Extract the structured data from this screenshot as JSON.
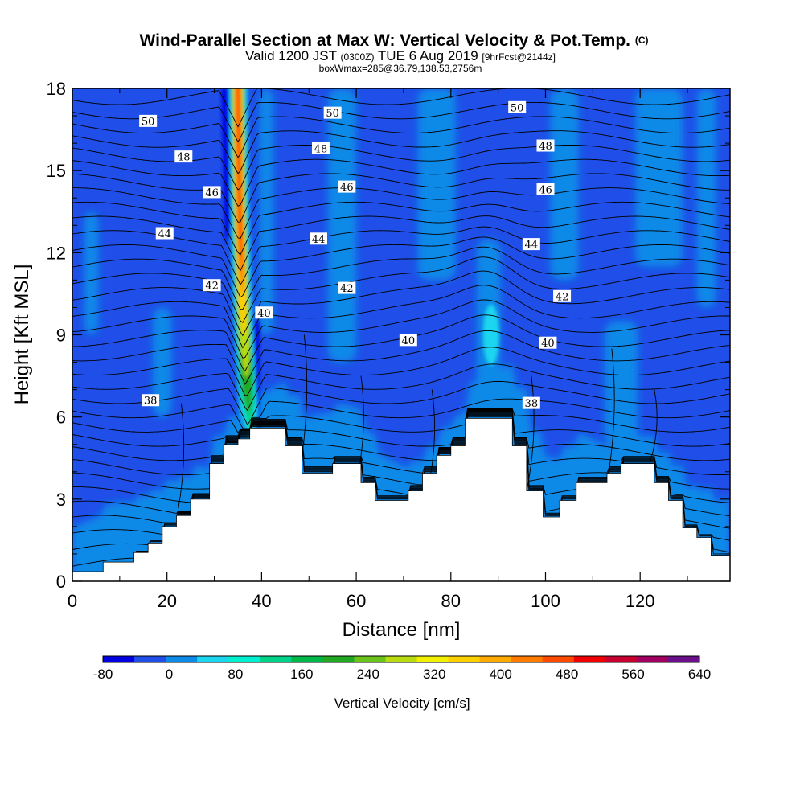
{
  "chart_data": {
    "type": "heatmap",
    "title": "Wind-Parallel Section at Max W: Vertical Velocity & Pot.Temp.",
    "title_mark": "(C)",
    "subtitle_main": "Valid 1200 JST",
    "subtitle_utc": "(0300Z)",
    "subtitle_date": "TUE 6 Aug 2019",
    "subtitle_fcst": "[9hrFcst@2144z]",
    "subtitle2": "boxWmax=285@36.79,138.53,2756m",
    "xlabel": "Distance [nm]",
    "ylabel": "Height [Kft MSL]",
    "xlim": [
      0,
      139
    ],
    "ylim": [
      0,
      18
    ],
    "x_ticks": [
      0,
      20,
      40,
      60,
      80,
      100,
      120
    ],
    "y_ticks": [
      0,
      3,
      6,
      9,
      12,
      15,
      18
    ],
    "colorbar": {
      "label": "Vertical Velocity [cm/s]",
      "ticks": [
        -80,
        0,
        80,
        160,
        240,
        320,
        400,
        480,
        560,
        640
      ],
      "levels": [
        -80,
        -40,
        0,
        40,
        80,
        120,
        160,
        200,
        240,
        280,
        320,
        360,
        400,
        440,
        480,
        520,
        560,
        600,
        640
      ],
      "colors": [
        "#0000e0",
        "#1f4ee8",
        "#0e8ae8",
        "#1ad6f0",
        "#00f0d0",
        "#00d48a",
        "#00b84a",
        "#22a822",
        "#6ac41c",
        "#b8dc10",
        "#f0f000",
        "#ffd000",
        "#ffaa00",
        "#ff7a00",
        "#ff4a00",
        "#f00000",
        "#c80030",
        "#a00060",
        "#6a108a"
      ]
    },
    "terrain": {
      "x": [
        0,
        6.5,
        13,
        16,
        19,
        22,
        25,
        29,
        32,
        35,
        37.5,
        40.5,
        45,
        48.5,
        55,
        61,
        64,
        71,
        74,
        77,
        80,
        83,
        86.5,
        93,
        96,
        99.5,
        103,
        106.5,
        113,
        116,
        123,
        126,
        129,
        132,
        135,
        139
      ],
      "y": [
        0.35,
        0.7,
        1.05,
        1.4,
        2,
        2.4,
        3,
        4.3,
        5,
        5.2,
        5.6,
        5.6,
        4.95,
        3.95,
        4.3,
        3.6,
        2.95,
        3.3,
        3.95,
        4.6,
        4.95,
        5.95,
        5.95,
        4.95,
        3.3,
        2.35,
        2.95,
        3.6,
        3.95,
        4.3,
        3.6,
        2.95,
        1.95,
        1.6,
        0.95,
        0.95
      ]
    },
    "updraft": {
      "x_center": [
        38,
        37,
        36,
        35.3,
        35
      ],
      "y": [
        4.8,
        7,
        10,
        14,
        18
      ],
      "peak": 480
    },
    "isentropes": {
      "levels": [
        38,
        40,
        42,
        44,
        46,
        48,
        50
      ],
      "labels": [
        {
          "text": "50",
          "x": 16,
          "y": 16.8
        },
        {
          "text": "48",
          "x": 23.5,
          "y": 15.5
        },
        {
          "text": "46",
          "x": 29.5,
          "y": 14.2
        },
        {
          "text": "44",
          "x": 19.5,
          "y": 12.7
        },
        {
          "text": "42",
          "x": 29.5,
          "y": 10.8
        },
        {
          "text": "40",
          "x": 40.5,
          "y": 9.8
        },
        {
          "text": "38",
          "x": 16.5,
          "y": 6.6
        },
        {
          "text": "50",
          "x": 55,
          "y": 17.1
        },
        {
          "text": "48",
          "x": 52.5,
          "y": 15.8
        },
        {
          "text": "46",
          "x": 58,
          "y": 14.4
        },
        {
          "text": "44",
          "x": 52,
          "y": 12.5
        },
        {
          "text": "42",
          "x": 58,
          "y": 10.7
        },
        {
          "text": "40",
          "x": 71,
          "y": 8.8
        },
        {
          "text": "50",
          "x": 94,
          "y": 17.3
        },
        {
          "text": "48",
          "x": 100,
          "y": 15.9
        },
        {
          "text": "46",
          "x": 100,
          "y": 14.3
        },
        {
          "text": "44",
          "x": 97,
          "y": 12.3
        },
        {
          "text": "42",
          "x": 103.5,
          "y": 10.4
        },
        {
          "text": "40",
          "x": 100.5,
          "y": 8.7
        },
        {
          "text": "38",
          "x": 97,
          "y": 6.5
        }
      ]
    }
  }
}
